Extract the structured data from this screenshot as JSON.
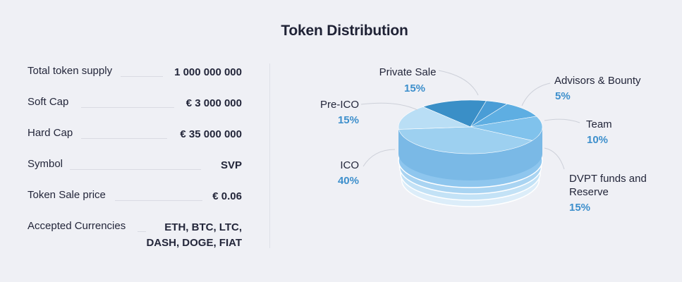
{
  "title": "Token Distribution",
  "specs": [
    {
      "label": "Total token supply",
      "value": "1 000 000 000"
    },
    {
      "label": "Soft Cap",
      "value": "€ 3 000 000"
    },
    {
      "label": "Hard Cap",
      "value": "€ 35 000 000"
    },
    {
      "label": "Symbol",
      "value": "SVP"
    },
    {
      "label": "Token Sale price",
      "value": "€ 0.06"
    },
    {
      "label": "Accepted Currencies",
      "value": "ETH, BTC, LTC,",
      "value2": "DASH, DOGE, FIAT"
    }
  ],
  "chart_data": {
    "type": "pie",
    "title": "Token Distribution",
    "slices": [
      {
        "label": "Private Sale",
        "value": 15,
        "display": "15%",
        "color": "#3a8fc7"
      },
      {
        "label": "Advisors & Bounty",
        "value": 5,
        "display": "5%",
        "color": "#4a9dd6"
      },
      {
        "label": "Team",
        "value": 10,
        "display": "10%",
        "color": "#5eaee2"
      },
      {
        "label": "DVPT funds and Reserve",
        "value": 15,
        "display": "15%",
        "color": "#80c2ec"
      },
      {
        "label": "ICO",
        "value": 40,
        "display": "40%",
        "color": "#9dd0f0"
      },
      {
        "label": "Pre-ICO",
        "value": 15,
        "display": "15%",
        "color": "#b9def5"
      }
    ],
    "colors": {
      "label": "#23263a",
      "percent": "#3d8fcc",
      "side": "#7ab9e6",
      "layers": [
        "#8ec6ee",
        "#a9d4f2",
        "#c3e2f6",
        "#dcedf9"
      ]
    }
  }
}
